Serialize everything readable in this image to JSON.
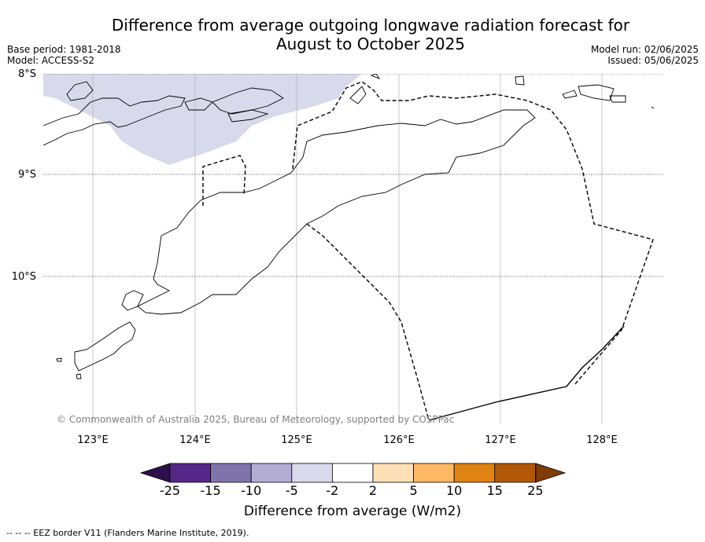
{
  "title_line1": "Difference from average outgoing longwave radiation forecast for",
  "title_line2": "August to October 2025",
  "meta_left": [
    "Base period: 1981-2018",
    "Model: ACCESS-S2"
  ],
  "meta_right": [
    "Model run: 02/06/2025",
    "Issued: 05/06/2025"
  ],
  "lat_labels": [
    "8°S",
    "9°S",
    "10°S"
  ],
  "lon_labels": [
    "123°E",
    "124°E",
    "125°E",
    "126°E",
    "127°E",
    "128°E"
  ],
  "copyright": "© Commonwealth of Australia 2025, Bureau of Meteorology, supported by COSPPac",
  "colorbar": {
    "ticks": [
      "-25",
      "-15",
      "-10",
      "-5",
      "-2",
      "2",
      "5",
      "10",
      "15",
      "25"
    ],
    "colors": [
      "#2d0f4b",
      "#542788",
      "#8073ac",
      "#b2abd2",
      "#d8daeb",
      "#ffffff",
      "#fee0b6",
      "#fdb863",
      "#e08214",
      "#b35806",
      "#7f3b08"
    ],
    "label": "Difference from average (W/m2)"
  },
  "footnote": "--  --  -- EEZ border V11 (Flanders Marine Institute, 2019).",
  "shading": {
    "value_range": "-5 to -2",
    "color": "#d8daeb"
  }
}
